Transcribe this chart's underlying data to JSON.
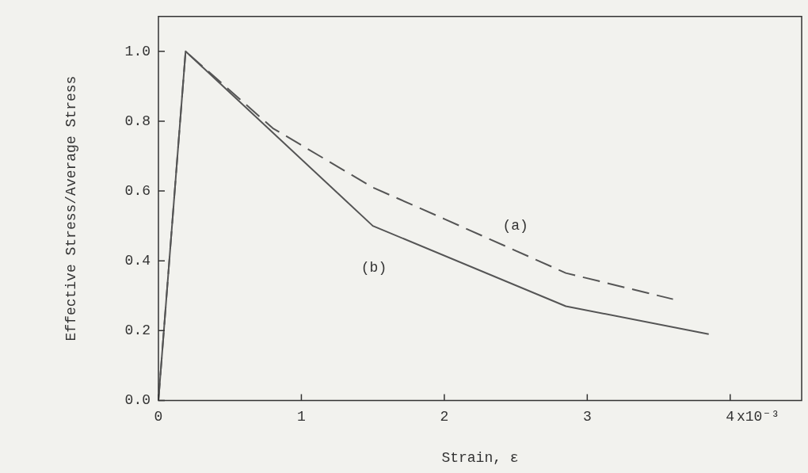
{
  "chart_data": {
    "type": "line",
    "xlabel": "Strain, ε",
    "ylabel": "Effective Stress/Average Stress",
    "xlim": [
      0,
      4.5
    ],
    "ylim": [
      0,
      1.1
    ],
    "xticks": [
      0,
      1,
      2,
      3,
      4
    ],
    "yticks": [
      {
        "value": 0,
        "label": "0.0"
      },
      {
        "value": 0.2,
        "label": "0.2"
      },
      {
        "value": 0.4,
        "label": "0.4"
      },
      {
        "value": 0.6,
        "label": "0.6"
      },
      {
        "value": 0.8,
        "label": "0.8"
      },
      {
        "value": 1,
        "label": "1.0"
      }
    ],
    "grid": false,
    "legend": false,
    "marker": "none",
    "series": [
      {
        "color": "#555555",
        "line_style": "dashed",
        "x": [
          0,
          0.19,
          0.8,
          1.5,
          2,
          2.85,
          3.6
        ],
        "values": [
          0,
          1.0,
          0.78,
          0.61,
          0.52,
          0.365,
          0.29
        ]
      },
      {
        "color": "#555555",
        "line_style": "solid",
        "x": [
          0,
          0.19,
          1.5,
          2.85,
          3.85
        ],
        "values": [
          0,
          1.0,
          0.5,
          0.27,
          0.19
        ]
      }
    ],
    "annotations": [
      "x10⁻³",
      "(a)",
      "(b)"
    ]
  }
}
